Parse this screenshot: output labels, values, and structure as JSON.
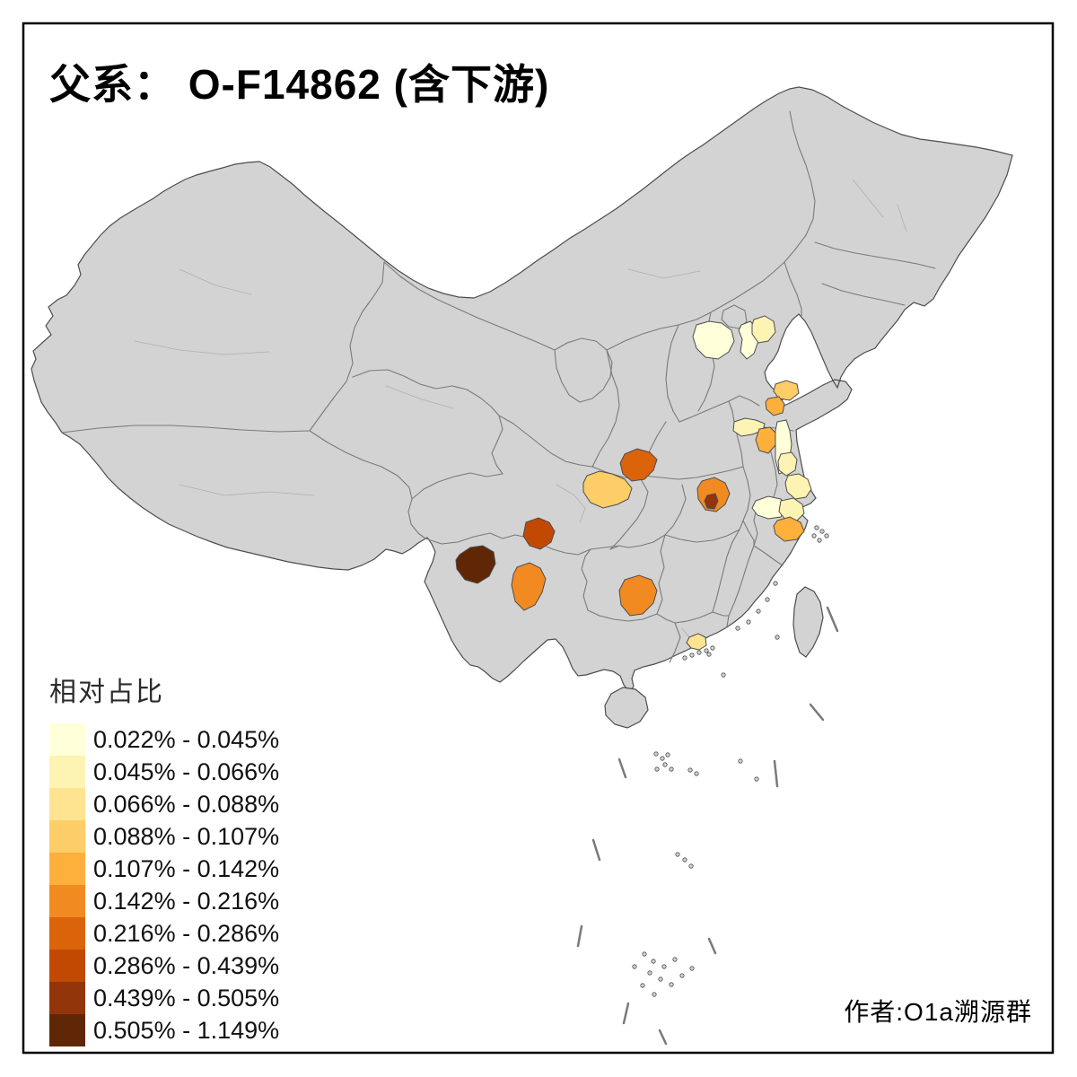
{
  "title": "父系： O-F14862 (含下游)",
  "attribution": "作者:O1a溯源群",
  "legend": {
    "title": "相对占比",
    "items": [
      {
        "color": "#FFFFD9",
        "label": "0.022% - 0.045%"
      },
      {
        "color": "#FDF3B3",
        "label": "0.045% - 0.066%"
      },
      {
        "color": "#FEE391",
        "label": "0.066% - 0.088%"
      },
      {
        "color": "#FDCD67",
        "label": "0.088% - 0.107%"
      },
      {
        "color": "#FDB03C",
        "label": "0.107% - 0.142%"
      },
      {
        "color": "#F28A22",
        "label": "0.142% - 0.216%"
      },
      {
        "color": "#DB630A",
        "label": "0.216% - 0.286%"
      },
      {
        "color": "#C14902",
        "label": "0.286% - 0.439%"
      },
      {
        "color": "#92350A",
        "label": "0.439% - 0.505%"
      },
      {
        "color": "#5F2706",
        "label": "0.505% - 1.149%"
      }
    ]
  },
  "map": {
    "land_color": "#D3D3D3",
    "sea_color": "#FFFFFF",
    "outline_color": "#4D4D4D",
    "province_border_color": "#7A7A7A",
    "prefecture_border_color": "#A3A3A3",
    "frame_color": "#000000",
    "regions": [
      {
        "id": "r1",
        "area": "hebei-west-patch",
        "class": 1,
        "color": "#FFFFD9",
        "value_range": "0.022% - 0.045%"
      },
      {
        "id": "r2",
        "area": "tianjin-patch",
        "class": 1,
        "color": "#FFFFD9",
        "value_range": "0.022% - 0.045%"
      },
      {
        "id": "r3",
        "area": "hebei-northeast-patch",
        "class": 2,
        "color": "#FDF3B3",
        "value_range": "0.045% - 0.066%"
      },
      {
        "id": "r4",
        "area": "shandong-peninsula-patch",
        "class": 4,
        "color": "#FDCD67",
        "value_range": "0.088% - 0.107%"
      },
      {
        "id": "r5",
        "area": "shandong-south-patch",
        "class": 5,
        "color": "#FDB03C",
        "value_range": "0.107% - 0.142%"
      },
      {
        "id": "r6",
        "area": "henan-shandong-border-patch",
        "class": 2,
        "color": "#FDF3B3",
        "value_range": "0.045% - 0.066%"
      },
      {
        "id": "r7",
        "area": "jiangsu-north-patch",
        "class": 5,
        "color": "#FDB03C",
        "value_range": "0.107% - 0.142%"
      },
      {
        "id": "r8",
        "area": "jiangsu-coastal-strip",
        "class": 1,
        "color": "#FFFFD9",
        "value_range": "0.022% - 0.045%"
      },
      {
        "id": "r9",
        "area": "jiangsu-coast-south-patch",
        "class": 2,
        "color": "#FDF3B3",
        "value_range": "0.045% - 0.066%"
      },
      {
        "id": "r10",
        "area": "yangtze-mouth-patch",
        "class": 2,
        "color": "#FDF3B3",
        "value_range": "0.045% - 0.066%"
      },
      {
        "id": "r11",
        "area": "zhejiang-north-patch",
        "class": 1,
        "color": "#FFFFD9",
        "value_range": "0.022% - 0.045%"
      },
      {
        "id": "r12",
        "area": "zhejiang-northeast-patch",
        "class": 2,
        "color": "#FDF3B3",
        "value_range": "0.045% - 0.066%"
      },
      {
        "id": "r13",
        "area": "zhejiang-central-patch",
        "class": 5,
        "color": "#FDB03C",
        "value_range": "0.107% - 0.142%"
      },
      {
        "id": "r14",
        "area": "shaanxi-south-patch",
        "class": 7,
        "color": "#DB630A",
        "value_range": "0.216% - 0.286%"
      },
      {
        "id": "r15",
        "area": "sichuan-north-patch",
        "class": 4,
        "color": "#FDCD67",
        "value_range": "0.088% - 0.107%"
      },
      {
        "id": "r16",
        "area": "hubei-central-patch",
        "class": 6,
        "color": "#F28A22",
        "value_range": "0.142% - 0.216%"
      },
      {
        "id": "r17",
        "area": "hubei-small-dark-patch",
        "class": 9,
        "color": "#92350A",
        "value_range": "0.439% - 0.505%"
      },
      {
        "id": "r18",
        "area": "sichuan-south-patch",
        "class": 8,
        "color": "#C14902",
        "value_range": "0.286% - 0.439%"
      },
      {
        "id": "r19",
        "area": "yunnan-west-patch",
        "class": 10,
        "color": "#5F2706",
        "value_range": "0.505% - 1.149%"
      },
      {
        "id": "r20",
        "area": "yunnan-central-patch",
        "class": 6,
        "color": "#F28A22",
        "value_range": "0.142% - 0.216%"
      },
      {
        "id": "r21",
        "area": "guizhou-patch",
        "class": 6,
        "color": "#F28A22",
        "value_range": "0.142% - 0.216%"
      },
      {
        "id": "r22",
        "area": "pearl-delta-patch",
        "class": 3,
        "color": "#FEE391",
        "value_range": "0.066% - 0.088%"
      }
    ]
  },
  "chart_data": {
    "type": "heatmap",
    "subtype": "choropleth-map-of-china-prefectures",
    "title": "父系： O-F14862 (含下游)",
    "legend_title": "相对占比",
    "legend_position": "bottom-left",
    "attribution": "作者:O1a溯源群",
    "classes": [
      {
        "range": "0.022% - 0.045%",
        "color": "#FFFFD9"
      },
      {
        "range": "0.045% - 0.066%",
        "color": "#FDF3B3"
      },
      {
        "range": "0.066% - 0.088%",
        "color": "#FEE391"
      },
      {
        "range": "0.088% - 0.107%",
        "color": "#FDCD67"
      },
      {
        "range": "0.107% - 0.142%",
        "color": "#FDB03C"
      },
      {
        "range": "0.142% - 0.216%",
        "color": "#F28A22"
      },
      {
        "range": "0.216% - 0.286%",
        "color": "#DB630A"
      },
      {
        "range": "0.286% - 0.439%",
        "color": "#C14902"
      },
      {
        "range": "0.439% - 0.505%",
        "color": "#92350A"
      },
      {
        "range": "0.505% - 1.149%",
        "color": "#5F2706"
      }
    ],
    "regions": [
      {
        "id": "r1",
        "value_range": "0.022% - 0.045%"
      },
      {
        "id": "r2",
        "value_range": "0.022% - 0.045%"
      },
      {
        "id": "r3",
        "value_range": "0.045% - 0.066%"
      },
      {
        "id": "r4",
        "value_range": "0.088% - 0.107%"
      },
      {
        "id": "r5",
        "value_range": "0.107% - 0.142%"
      },
      {
        "id": "r6",
        "value_range": "0.045% - 0.066%"
      },
      {
        "id": "r7",
        "value_range": "0.107% - 0.142%"
      },
      {
        "id": "r8",
        "value_range": "0.022% - 0.045%"
      },
      {
        "id": "r9",
        "value_range": "0.045% - 0.066%"
      },
      {
        "id": "r10",
        "value_range": "0.045% - 0.066%"
      },
      {
        "id": "r11",
        "value_range": "0.022% - 0.045%"
      },
      {
        "id": "r12",
        "value_range": "0.045% - 0.066%"
      },
      {
        "id": "r13",
        "value_range": "0.107% - 0.142%"
      },
      {
        "id": "r14",
        "value_range": "0.216% - 0.286%"
      },
      {
        "id": "r15",
        "value_range": "0.088% - 0.107%"
      },
      {
        "id": "r16",
        "value_range": "0.142% - 0.216%"
      },
      {
        "id": "r17",
        "value_range": "0.439% - 0.505%"
      },
      {
        "id": "r18",
        "value_range": "0.286% - 0.439%"
      },
      {
        "id": "r19",
        "value_range": "0.505% - 1.149%"
      },
      {
        "id": "r20",
        "value_range": "0.142% - 0.216%"
      },
      {
        "id": "r21",
        "value_range": "0.142% - 0.216%"
      },
      {
        "id": "r22",
        "value_range": "0.066% - 0.088%"
      }
    ]
  }
}
